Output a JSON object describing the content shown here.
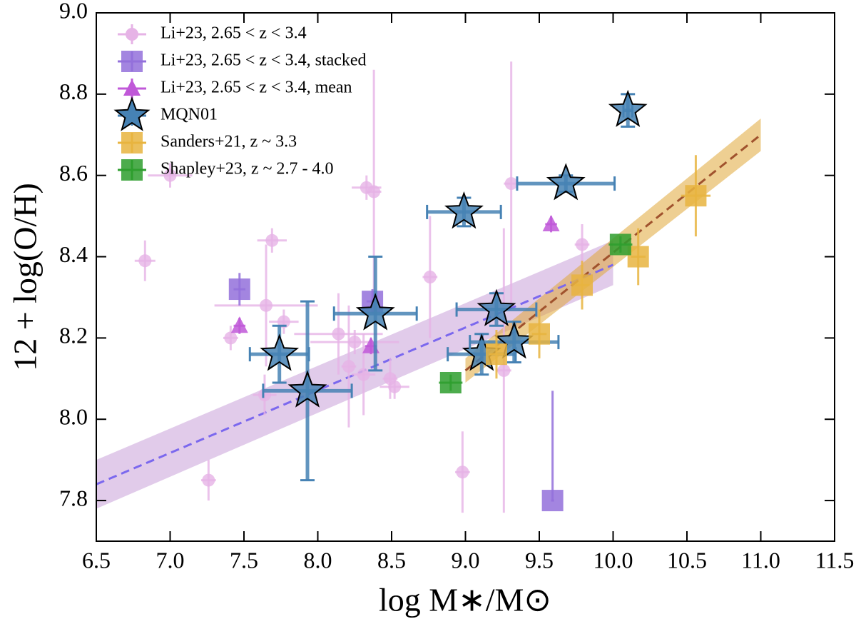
{
  "chart_data": {
    "type": "scatter",
    "xlabel": "log M∗/M⊙",
    "ylabel": "12 + log(O/H)",
    "xlim": [
      6.5,
      11.5
    ],
    "ylim": [
      7.7,
      9.0
    ],
    "xticks": [
      6.5,
      {
        "value": 7,
        "label": "7.0"
      },
      7.5,
      {
        "value": 8,
        "label": "8.0"
      },
      8.5,
      {
        "value": 9,
        "label": "9.0"
      },
      9.5,
      {
        "value": 10,
        "label": "10.0"
      },
      10.5,
      {
        "value": 11,
        "label": "11.0"
      },
      11.5
    ],
    "yticks": [
      7.8,
      {
        "value": 8,
        "label": "8.0"
      },
      8.2,
      8.4,
      8.6,
      8.8,
      {
        "value": 9,
        "label": "9.0"
      }
    ],
    "legend": "upper left",
    "fits": [
      {
        "color": "#7b68ee",
        "band_color": "#c9a0d8",
        "x": [
          6.5,
          10.0
        ],
        "values": [
          7.84,
          8.38
        ],
        "band_lower": [
          7.78,
          8.33
        ],
        "band_upper": [
          7.9,
          8.44
        ]
      },
      {
        "color": "#a0522d",
        "band_color": "#e0a838",
        "x": [
          9.0,
          11.0
        ],
        "values": [
          8.12,
          8.7
        ],
        "band_lower": [
          8.09,
          8.66
        ],
        "band_upper": [
          8.15,
          8.74
        ]
      }
    ],
    "series": [
      {
        "name": "Li+23,  2.65 < z < 3.4",
        "color": "#e6b3e6",
        "marker": "circle",
        "x": [
          6.83,
          7.0,
          7.69,
          7.26,
          7.41,
          7.64,
          7.65,
          7.77,
          8.14,
          8.21,
          8.25,
          8.31,
          8.33,
          8.38,
          8.49,
          8.52,
          8.76,
          8.98,
          9.26,
          9.31,
          9.79
        ],
        "values": [
          8.39,
          8.6,
          8.44,
          7.85,
          8.2,
          8.06,
          8.28,
          8.24,
          8.21,
          8.13,
          8.19,
          8.11,
          8.57,
          8.56,
          8.1,
          8.08,
          8.35,
          7.87,
          8.12,
          8.58,
          8.43
        ],
        "xerr": [
          0.07,
          0.15,
          0.1,
          0.05,
          0.05,
          0.08,
          0.35,
          0.1,
          0.3,
          0.05,
          0.3,
          0.08,
          0.1,
          0.05,
          0.05,
          0.1,
          0.05,
          0.05,
          0.05,
          0.05,
          0.05
        ],
        "yerr": [
          0.05,
          0.03,
          0.03,
          0.05,
          0.03,
          0.05,
          0.15,
          0.03,
          0.1,
          0.15,
          0.03,
          0.1,
          0.03,
          0.3,
          0.05,
          0.03,
          0.15,
          0.1,
          0.35,
          0.3,
          0.05
        ]
      },
      {
        "name": "Li+23,  2.65 < z < 3.4, stacked",
        "color": "#9370db",
        "marker": "square",
        "x": [
          7.47,
          8.37,
          9.59
        ],
        "values": [
          8.32,
          8.29,
          7.8
        ],
        "xerr": [
          0.04,
          0.04,
          0.01
        ],
        "yerr": [
          0.04,
          0.03,
          [
            0.0,
            0.27
          ]
        ]
      },
      {
        "name": "Li+23,  2.65 < z < 3.4, mean",
        "color": "#c058d8",
        "marker": "triangle",
        "x": [
          7.47,
          8.36,
          9.58
        ],
        "values": [
          8.23,
          8.18,
          8.48
        ],
        "xerr": [
          0.04,
          0.04,
          0.04
        ],
        "yerr": [
          0.02,
          0.02,
          0.02
        ]
      },
      {
        "name": "MQN01",
        "color": "#4682b4",
        "marker": "star",
        "x": [
          10.1,
          9.68,
          8.99,
          9.21,
          8.39,
          7.74,
          7.93,
          9.11,
          9.33
        ],
        "values": [
          8.76,
          8.58,
          8.51,
          8.27,
          8.26,
          8.16,
          8.07,
          8.16,
          8.19
        ],
        "xerr": [
          0.03,
          0.33,
          0.25,
          0.27,
          0.28,
          0.2,
          0.3,
          0.23,
          0.3
        ],
        "yerr": [
          0.04,
          0.02,
          0.035,
          0.04,
          0.14,
          0.07,
          0.22,
          0.05,
          0.05
        ]
      },
      {
        "name": "Sanders+21, z ~ 3.3",
        "color": "#e8b440",
        "marker": "square",
        "x": [
          10.56,
          10.17,
          9.79,
          9.5,
          9.21
        ],
        "values": [
          8.55,
          8.4,
          8.33,
          8.21,
          8.16
        ],
        "xerr": [
          0.1,
          0.05,
          0.05,
          0.05,
          0.05
        ],
        "yerr": [
          0.1,
          0.07,
          0.06,
          0.06,
          0.06
        ]
      },
      {
        "name": "Shapley+23, z ~ 2.7 - 4.0",
        "color": "#2e9e2e",
        "marker": "square",
        "x": [
          10.05,
          8.9
        ],
        "values": [
          8.43,
          8.09
        ],
        "xerr": [
          0.08,
          0.08
        ],
        "yerr": [
          0.02,
          0.02
        ]
      }
    ]
  }
}
